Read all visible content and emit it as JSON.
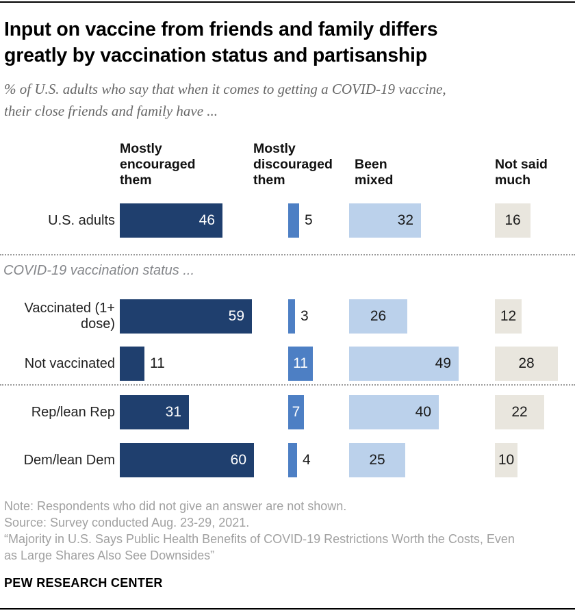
{
  "header": {
    "title_lines": [
      "Input on vaccine from friends and family differs",
      "greatly by vaccination status and partisanship"
    ],
    "subtitle_lines": [
      "% of U.S. adults who say that when it comes to getting a COVID-19 vaccine,",
      "their close friends and family have ..."
    ]
  },
  "footer": {
    "note": "Note: Respondents who did not give an answer are not shown.",
    "source": "Source: Survey conducted Aug. 23-29, 2021.",
    "quote_lines": [
      "“Majority in U.S. Says Public Health Benefits of COVID-19 Restrictions Worth the Costs, Even",
      "as Large Shares Also See Downsides”"
    ],
    "brand": "PEW RESEARCH CENTER"
  },
  "chart_data": {
    "type": "bar",
    "orientation": "horizontal",
    "title": "Input on vaccine from friends and family differs greatly by vaccination status and partisanship",
    "subtitle": "% of U.S. adults who say that when it comes to getting a COVID-19 vaccine, their close friends and family have ...",
    "unit": "percent of U.S. adults",
    "value_range": [
      0,
      100
    ],
    "grid": "off",
    "categories": [
      "Mostly encouraged them",
      "Mostly discouraged them",
      "Been mixed",
      "Not said much"
    ],
    "category_colors": [
      "#1F3F6E",
      "#4D7FC4",
      "#BBD1EB",
      "#E9E6DE"
    ],
    "category_label_colors": [
      "#FFFFFF",
      "#FFFFFF",
      "#1A1A1A",
      "#1A1A1A"
    ],
    "groups": [
      {
        "section_label": "",
        "rows": [
          {
            "label": "U.S. adults",
            "values": [
              46,
              5,
              32,
              16
            ],
            "label_pos": [
              "in",
              "out",
              "in",
              "in"
            ]
          }
        ]
      },
      {
        "section_label": "COVID-19 vaccination status ...",
        "rows": [
          {
            "label": "Vaccinated (1+ dose)",
            "values": [
              59,
              3,
              26,
              12
            ],
            "label_pos": [
              "in",
              "out",
              "in",
              "in"
            ]
          },
          {
            "label": "Not vaccinated",
            "values": [
              11,
              11,
              49,
              28
            ],
            "label_pos": [
              "out",
              "in",
              "in",
              "in"
            ]
          }
        ]
      },
      {
        "section_label": "",
        "rows": [
          {
            "label": "Rep/lean Rep",
            "values": [
              31,
              7,
              40,
              22
            ],
            "label_pos": [
              "in",
              "in",
              "in",
              "in"
            ]
          },
          {
            "label": "Dem/lean Dem",
            "values": [
              60,
              4,
              25,
              10
            ],
            "label_pos": [
              "in",
              "out",
              "in",
              "in"
            ]
          }
        ]
      }
    ]
  }
}
